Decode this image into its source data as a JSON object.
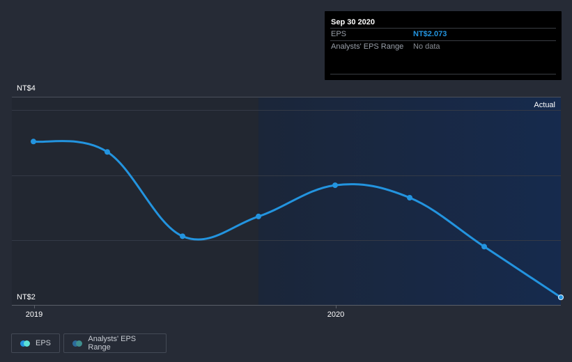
{
  "chart_data": {
    "type": "line",
    "title": "",
    "xlabel": "",
    "ylabel": "",
    "y_ticks": [
      "NT$4",
      "NT$2"
    ],
    "ylim": [
      2,
      4
    ],
    "x_ticks": [
      "2019",
      "2020"
    ],
    "grid": true,
    "legend_position": "bottom-left",
    "region_label": "Actual",
    "series": [
      {
        "name": "EPS",
        "color": "#2394df",
        "points": [
          {
            "date": "Dec 31 2018",
            "value": 3.57
          },
          {
            "date": "Mar 31 2019",
            "value": 3.47
          },
          {
            "date": "Jun 30 2019",
            "value": 2.66
          },
          {
            "date": "Sep 30 2019",
            "value": 2.85
          },
          {
            "date": "Dec 31 2019",
            "value": 3.15
          },
          {
            "date": "Mar 31 2020",
            "value": 3.03
          },
          {
            "date": "Jun 30 2020",
            "value": 2.56
          },
          {
            "date": "Sep 30 2020",
            "value": 2.073
          }
        ]
      },
      {
        "name": "Analysts' EPS Range",
        "color": "#2c6a9a",
        "points": []
      }
    ]
  },
  "axis": {
    "y_top": "NT$4",
    "y_bottom": "NT$2",
    "x_2019": "2019",
    "x_2020": "2020",
    "actual": "Actual"
  },
  "tooltip": {
    "date": "Sep 30 2020",
    "rows": [
      {
        "label": "EPS",
        "value": "NT$2.073"
      },
      {
        "label": "Analysts' EPS Range",
        "value": "No data"
      }
    ]
  },
  "legend": [
    {
      "label": "EPS",
      "color1": "#2394df",
      "color2": "#5ce1d6"
    },
    {
      "label": "Analysts' EPS Range",
      "color1": "#2c6a9a",
      "color2": "#3f8f8f"
    }
  ],
  "colors": {
    "background": "#262b36",
    "past_region": "#222731",
    "future_region_start": "#1b2639",
    "future_region_end": "#162a4d",
    "line": "#2394df"
  }
}
